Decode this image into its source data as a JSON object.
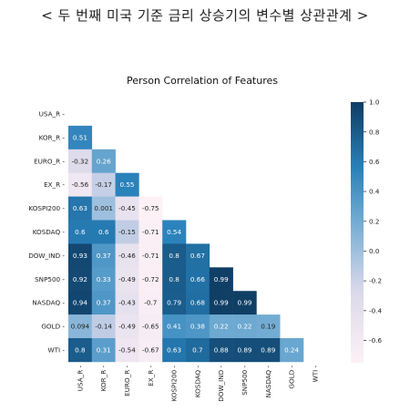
{
  "page": {
    "title": "< 두 번째 미국 기준 금리 상승기의 변수별 상관관계 >"
  },
  "colors": {
    "low": "#fdf1f6",
    "mid": "#dad8ea",
    "high": "#0f3d64",
    "text_light": "#ffffff",
    "text_dark": "#222222"
  },
  "chart_data": {
    "type": "heatmap",
    "title": "Person Correlation of Features",
    "labels": [
      "USA_R",
      "KOR_R",
      "EURO_R",
      "EX_R",
      "KOSPI200",
      "KOSDAQ",
      "DOW_IND",
      "SNP500",
      "NASDAQ",
      "GOLD",
      "WTI"
    ],
    "mask": "upper-triangle",
    "values": [
      [],
      [
        0.51
      ],
      [
        -0.32,
        0.26
      ],
      [
        -0.56,
        -0.17,
        0.55
      ],
      [
        0.63,
        0.001,
        -0.45,
        -0.75
      ],
      [
        0.6,
        0.6,
        -0.15,
        -0.71,
        0.54
      ],
      [
        0.93,
        0.37,
        -0.46,
        -0.71,
        0.8,
        0.67
      ],
      [
        0.92,
        0.33,
        -0.49,
        -0.72,
        0.8,
        0.66,
        0.99
      ],
      [
        0.94,
        0.37,
        -0.43,
        -0.7,
        0.79,
        0.68,
        0.99,
        0.99
      ],
      [
        0.094,
        -0.14,
        -0.49,
        -0.65,
        0.41,
        0.38,
        0.22,
        0.22,
        0.19
      ],
      [
        0.8,
        0.31,
        -0.54,
        -0.67,
        0.63,
        0.7,
        0.88,
        0.89,
        0.89,
        0.24
      ]
    ],
    "value_labels": [
      [],
      [
        "0.51"
      ],
      [
        "-0.32",
        "0.26"
      ],
      [
        "-0.56",
        "-0.17",
        "0.55"
      ],
      [
        "0.63",
        "0.001",
        "-0.45",
        "-0.75"
      ],
      [
        "0.6",
        "0.6",
        "-0.15",
        "-0.71",
        "0.54"
      ],
      [
        "0.93",
        "0.37",
        "-0.46",
        "-0.71",
        "0.8",
        "0.67"
      ],
      [
        "0.92",
        "0.33",
        "-0.49",
        "-0.72",
        "0.8",
        "0.66",
        "0.99"
      ],
      [
        "0.94",
        "0.37",
        "-0.43",
        "-0.7",
        "0.79",
        "0.68",
        "0.99",
        "0.99"
      ],
      [
        "0.094",
        "-0.14",
        "-0.49",
        "-0.65",
        "0.41",
        "0.38",
        "0.22",
        "0.22",
        "0.19"
      ],
      [
        "0.8",
        "0.31",
        "-0.54",
        "-0.67",
        "0.63",
        "0.7",
        "0.88",
        "0.89",
        "0.89",
        "0.24"
      ]
    ],
    "colorbar": {
      "range": [
        -0.75,
        1.0
      ],
      "ticks": [
        1.0,
        0.8,
        0.6,
        0.4,
        0.2,
        0.0,
        -0.2,
        -0.4,
        -0.6
      ],
      "tick_labels": [
        "1.0",
        "0.8",
        "0.6",
        "0.4",
        "0.2",
        "0.0",
        "-0.2",
        "-0.4",
        "-0.6"
      ]
    }
  }
}
